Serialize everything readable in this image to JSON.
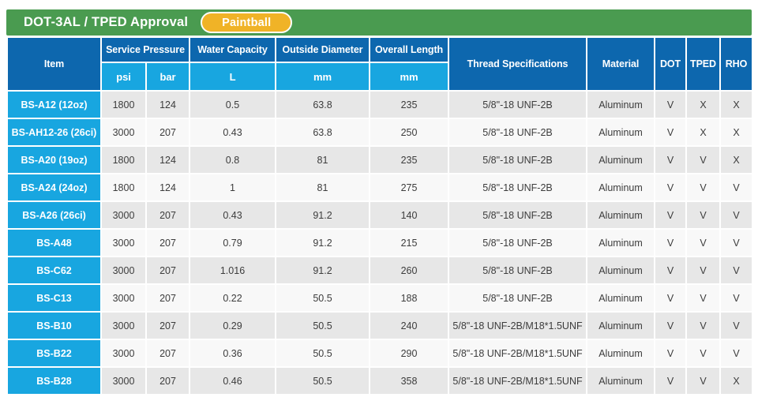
{
  "banner": {
    "title": "DOT-3AL / TPED Approval",
    "badge": "Paintball"
  },
  "colors": {
    "green": "#4a9b50",
    "blue": "#0d67ae",
    "cyan": "#18a6e0",
    "gold": "#f0b327",
    "row-odd": "#e7e7e7",
    "row-even": "#f8f8f8",
    "text-dark": "#3c3c3c"
  },
  "table": {
    "head": {
      "item": "Item",
      "service_pressure": "Service Pressure",
      "psi": "psi",
      "bar": "bar",
      "water_capacity": "Water Capacity",
      "water_capacity_unit": "L",
      "outside_diameter": "Outside Diameter",
      "outside_diameter_unit": "mm",
      "overall_length": "Overall Length",
      "overall_length_unit": "mm",
      "thread_specifications": "Thread Specifications",
      "material": "Material",
      "dot": "DOT",
      "tped": "TPED",
      "rho": "RHO"
    },
    "rows": [
      {
        "item": "BS-A12 (12oz)",
        "psi": "1800",
        "bar": "124",
        "water_capacity_l": "0.5",
        "outside_diameter_mm": "63.8",
        "overall_length_mm": "235",
        "thread": "5/8\"-18 UNF-2B",
        "material": "Aluminum",
        "dot": "V",
        "tped": "X",
        "rho": "X"
      },
      {
        "item": "BS-AH12-26 (26ci)",
        "psi": "3000",
        "bar": "207",
        "water_capacity_l": "0.43",
        "outside_diameter_mm": "63.8",
        "overall_length_mm": "250",
        "thread": "5/8\"-18 UNF-2B",
        "material": "Aluminum",
        "dot": "V",
        "tped": "X",
        "rho": "X"
      },
      {
        "item": "BS-A20 (19oz)",
        "psi": "1800",
        "bar": "124",
        "water_capacity_l": "0.8",
        "outside_diameter_mm": "81",
        "overall_length_mm": "235",
        "thread": "5/8\"-18 UNF-2B",
        "material": "Aluminum",
        "dot": "V",
        "tped": "V",
        "rho": "X"
      },
      {
        "item": "BS-A24 (24oz)",
        "psi": "1800",
        "bar": "124",
        "water_capacity_l": "1",
        "outside_diameter_mm": "81",
        "overall_length_mm": "275",
        "thread": "5/8\"-18 UNF-2B",
        "material": "Aluminum",
        "dot": "V",
        "tped": "V",
        "rho": "V"
      },
      {
        "item": "BS-A26 (26ci)",
        "psi": "3000",
        "bar": "207",
        "water_capacity_l": "0.43",
        "outside_diameter_mm": "91.2",
        "overall_length_mm": "140",
        "thread": "5/8\"-18 UNF-2B",
        "material": "Aluminum",
        "dot": "V",
        "tped": "V",
        "rho": "V"
      },
      {
        "item": "BS-A48",
        "psi": "3000",
        "bar": "207",
        "water_capacity_l": "0.79",
        "outside_diameter_mm": "91.2",
        "overall_length_mm": "215",
        "thread": "5/8\"-18 UNF-2B",
        "material": "Aluminum",
        "dot": "V",
        "tped": "V",
        "rho": "V"
      },
      {
        "item": "BS-C62",
        "psi": "3000",
        "bar": "207",
        "water_capacity_l": "1.016",
        "outside_diameter_mm": "91.2",
        "overall_length_mm": "260",
        "thread": "5/8\"-18 UNF-2B",
        "material": "Aluminum",
        "dot": "V",
        "tped": "V",
        "rho": "V"
      },
      {
        "item": "BS-C13",
        "psi": "3000",
        "bar": "207",
        "water_capacity_l": "0.22",
        "outside_diameter_mm": "50.5",
        "overall_length_mm": "188",
        "thread": "5/8\"-18 UNF-2B",
        "material": "Aluminum",
        "dot": "V",
        "tped": "V",
        "rho": "V"
      },
      {
        "item": "BS-B10",
        "psi": "3000",
        "bar": "207",
        "water_capacity_l": "0.29",
        "outside_diameter_mm": "50.5",
        "overall_length_mm": "240",
        "thread": "5/8\"-18 UNF-2B/M18*1.5UNF",
        "material": "Aluminum",
        "dot": "V",
        "tped": "V",
        "rho": "V"
      },
      {
        "item": "BS-B22",
        "psi": "3000",
        "bar": "207",
        "water_capacity_l": "0.36",
        "outside_diameter_mm": "50.5",
        "overall_length_mm": "290",
        "thread": "5/8\"-18 UNF-2B/M18*1.5UNF",
        "material": "Aluminum",
        "dot": "V",
        "tped": "V",
        "rho": "V"
      },
      {
        "item": "BS-B28",
        "psi": "3000",
        "bar": "207",
        "water_capacity_l": "0.46",
        "outside_diameter_mm": "50.5",
        "overall_length_mm": "358",
        "thread": "5/8\"-18 UNF-2B/M18*1.5UNF",
        "material": "Aluminum",
        "dot": "V",
        "tped": "V",
        "rho": "X"
      }
    ]
  }
}
